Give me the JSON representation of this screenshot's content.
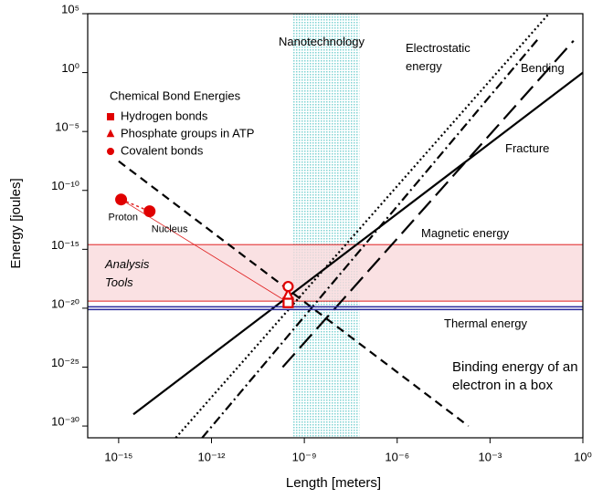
{
  "chart_data": {
    "type": "line",
    "xlabel": "Length [meters]",
    "ylabel": "Energy [joules]",
    "log_x": true,
    "log_y": true,
    "xlim": [
      1e-16,
      1
    ],
    "ylim": [
      1e-31,
      100000
    ],
    "xticks": [
      {
        "value": 1e-15,
        "label": "10⁻¹⁵"
      },
      {
        "value": 1e-12,
        "label": "10⁻¹²"
      },
      {
        "value": 1e-09,
        "label": "10⁻⁹"
      },
      {
        "value": 1e-06,
        "label": "10⁻⁶"
      },
      {
        "value": 0.001,
        "label": "10⁻³"
      },
      {
        "value": 1,
        "label": "10⁰"
      }
    ],
    "yticks": [
      {
        "value": 100000,
        "label": "10⁵"
      },
      {
        "value": 1,
        "label": "10⁰"
      },
      {
        "value": 1e-05,
        "label": "10⁻⁵"
      },
      {
        "value": 1e-10,
        "label": "10⁻¹⁰"
      },
      {
        "value": 1e-15,
        "label": "10⁻¹⁵"
      },
      {
        "value": 1e-20,
        "label": "10⁻²⁰"
      },
      {
        "value": 1e-25,
        "label": "10⁻²⁵"
      },
      {
        "value": 1e-30,
        "label": "10⁻³⁰"
      }
    ],
    "series": [
      {
        "name": "Electrostatic energy",
        "color": "#000000",
        "dash": "dotted",
        "x": [
          7e-14,
          0.08
        ],
        "y": [
          1e-31,
          100000
        ]
      },
      {
        "name": "Magnetic energy",
        "color": "#000000",
        "dash": "dashdot",
        "x": [
          5e-13,
          0.04
        ],
        "y": [
          1e-31,
          1000
        ]
      },
      {
        "name": "Fracture",
        "color": "#000000",
        "dash": "solid",
        "x": [
          3e-15,
          1
        ],
        "y": [
          1e-29,
          1
        ]
      },
      {
        "name": "Bending",
        "color": "#000000",
        "dash": "longdash",
        "x": [
          2e-10,
          0.5
        ],
        "y": [
          1e-25,
          500
        ]
      },
      {
        "name": "Binding energy of an electron in a box",
        "color": "#000000",
        "dash": "dashed",
        "x": [
          1e-15,
          0.0002
        ],
        "y": [
          3e-08,
          1e-30
        ]
      },
      {
        "name": "Thermal energy",
        "color": "#2b2b9c",
        "dash": "double",
        "x": [
          1e-16,
          1
        ],
        "y": [
          1e-20,
          1e-20
        ]
      }
    ],
    "bands": [
      {
        "name": "Nanotechnology",
        "axis": "x",
        "range": [
          4e-10,
          6e-08
        ],
        "color": "#7fd3d3"
      },
      {
        "name": "Analysis Tools",
        "axis": "y",
        "range": [
          4e-20,
          2.5e-15
        ],
        "color": "#f9d9dc"
      }
    ],
    "legend_title": "Chemical  Bond Energies",
    "points": [
      {
        "name": "Hydrogen bonds",
        "marker": "square",
        "color": "#e00000",
        "x": [
          3e-10
        ],
        "y": [
          3e-20
        ],
        "filled": [
          false
        ]
      },
      {
        "name": "Phosphate groups in ATP",
        "marker": "triangle",
        "color": "#e00000",
        "x": [
          3e-10
        ],
        "y": [
          1.3e-19
        ],
        "filled": [
          false
        ]
      },
      {
        "name": "Covalent bonds",
        "marker": "circle",
        "color": "#e00000",
        "x": [
          1.2e-15,
          1e-14,
          3e-10
        ],
        "y": [
          1.7e-11,
          1.7e-12,
          7e-19
        ],
        "filled": [
          true,
          true,
          false
        ],
        "point_labels": [
          "Proton",
          "Nucleus",
          null
        ]
      }
    ]
  }
}
